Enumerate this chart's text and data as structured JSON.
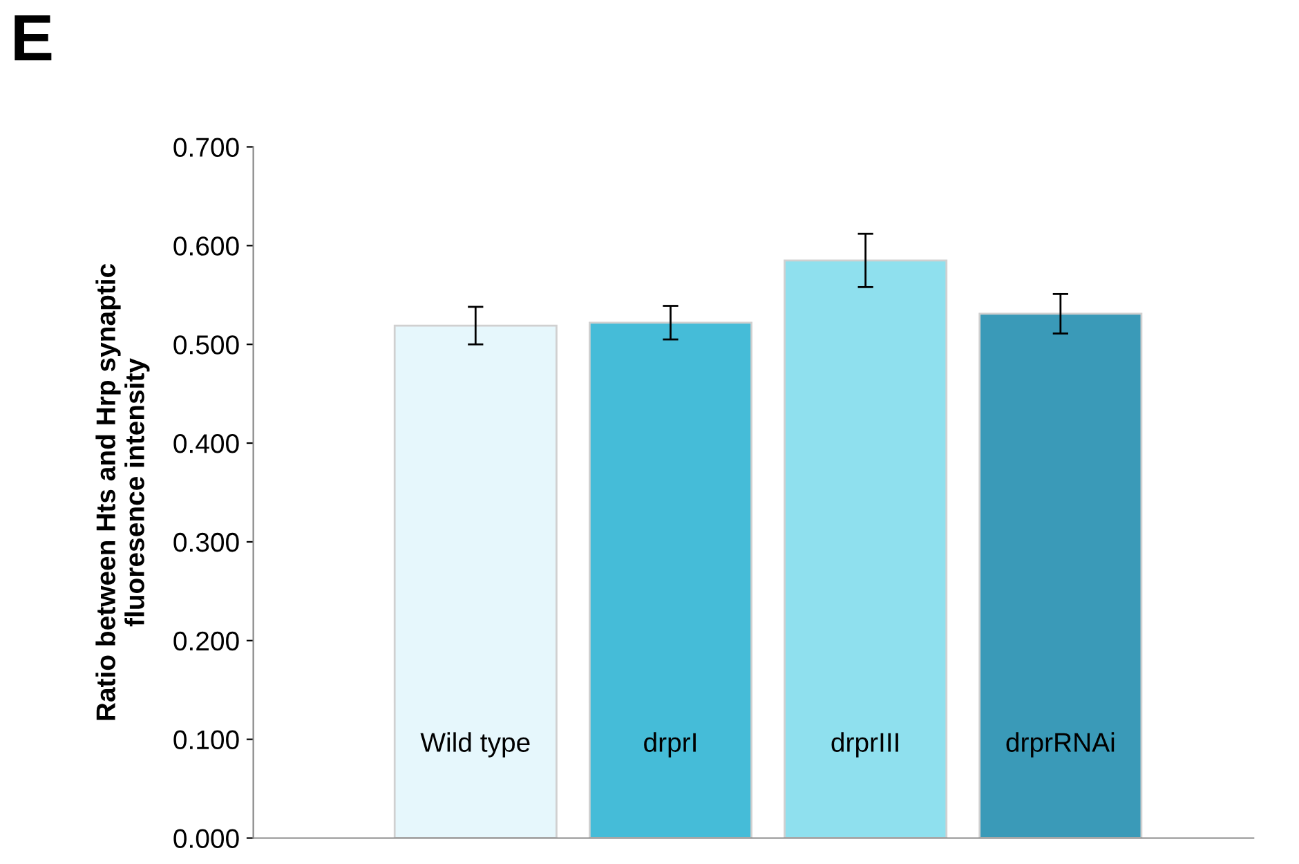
{
  "chart_data": {
    "type": "bar",
    "title": "E",
    "ylabel": "Ratio between Hts and Hrp synaptic\nfluoresence intensity",
    "categories": [
      "Wild type",
      "drprI",
      "drprIII",
      "drprRNAi"
    ],
    "values": [
      0.519,
      0.522,
      0.585,
      0.531
    ],
    "errors": [
      0.019,
      0.017,
      0.027,
      0.02
    ],
    "colors": [
      "#e6f7fc",
      "#45bcd8",
      "#8fe0ee",
      "#3a9ab8"
    ],
    "ylim": [
      0,
      0.7
    ],
    "yticks": [
      {
        "value": 0,
        "label": "0.000"
      },
      {
        "value": 0.1,
        "label": "0.100"
      },
      {
        "value": 0.2,
        "label": "0.200"
      },
      {
        "value": 0.3,
        "label": "0.300"
      },
      {
        "value": 0.4,
        "label": "0.400"
      },
      {
        "value": 0.5,
        "label": "0.500"
      },
      {
        "value": 0.6,
        "label": "0.600"
      },
      {
        "value": 0.7,
        "label": "0.700"
      }
    ],
    "grid": false
  }
}
